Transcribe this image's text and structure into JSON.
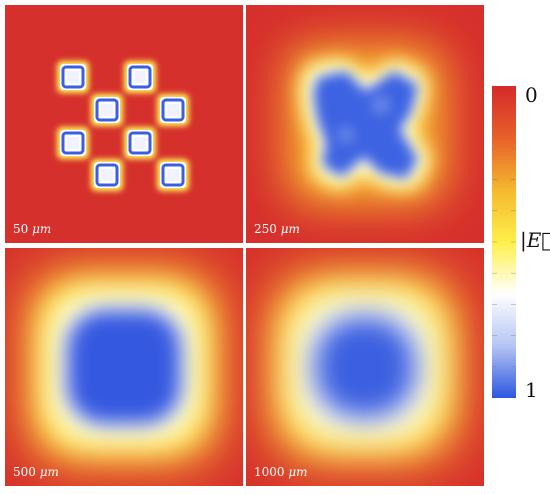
{
  "panels": [
    {
      "label_num": "50",
      "label_unit": "μm"
    },
    {
      "label_num": "250",
      "label_unit": "μm"
    },
    {
      "label_num": "500",
      "label_unit": "μm"
    },
    {
      "label_num": "1000",
      "label_unit": "μm"
    }
  ],
  "colorbar": {
    "label": "|E⃗|",
    "tick_top": "0",
    "tick_bottom": "1",
    "colors": [
      "#d42a2a",
      "#e8602a",
      "#f4b82e",
      "#fff04a",
      "#ffffff",
      "#b4c4f4",
      "#2d56e0"
    ]
  }
}
